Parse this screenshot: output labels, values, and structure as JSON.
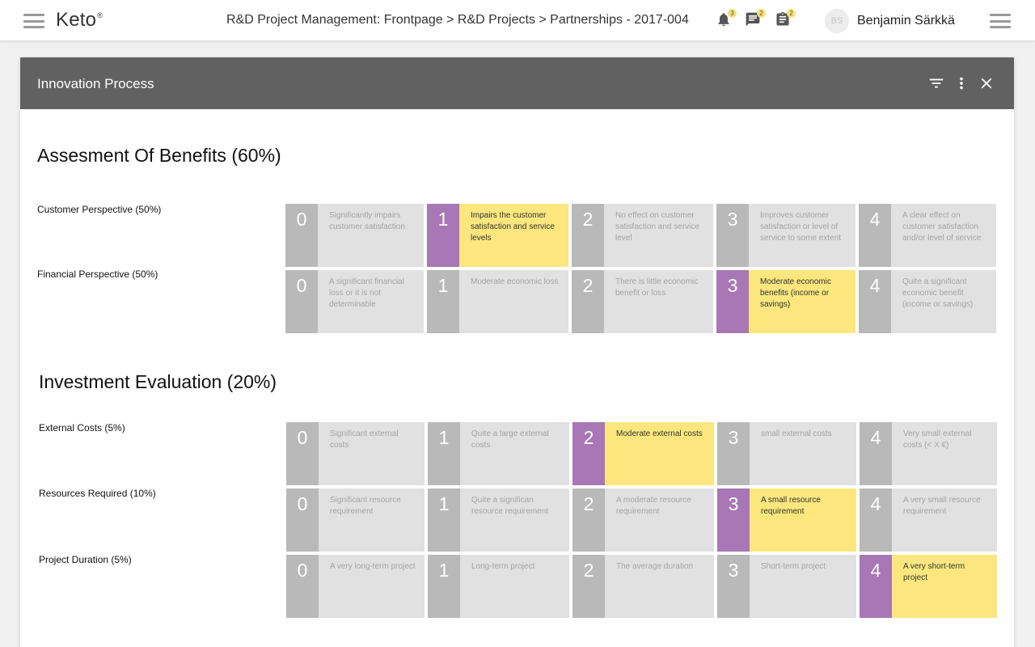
{
  "app": {
    "logo": "Keto",
    "logo_mark": "®"
  },
  "header": {
    "breadcrumb": "R&D Project Management: Frontpage > R&D Projects > Partnerships - 2017-004",
    "notifications": [
      {
        "icon": "bell-icon",
        "count": "3"
      },
      {
        "icon": "chat-icon",
        "count": "2"
      },
      {
        "icon": "clipboard-icon",
        "count": "2"
      }
    ],
    "user": {
      "initials": "BS",
      "name": "Benjamin Särkkä"
    }
  },
  "card": {
    "title": "Innovation Process"
  },
  "sections": [
    {
      "title": "Assesment Of Benefits (60%)",
      "rows": [
        {
          "label": "Customer Perspective (50%)",
          "selected": 1,
          "cells": [
            {
              "score": "0",
              "text": "Significantly impairs customer satisfaction"
            },
            {
              "score": "1",
              "text": "Impairs the customer satisfaction and service levels"
            },
            {
              "score": "2",
              "text": "No effect on customer satisfaction and service level"
            },
            {
              "score": "3",
              "text": "Improves customer satisfaction or level of service to some extent"
            },
            {
              "score": "4",
              "text": "A clear effect on customer satisfaction and/or level of service"
            }
          ]
        },
        {
          "label": "Financial Perspective (50%)",
          "selected": 3,
          "cells": [
            {
              "score": "0",
              "text": "A significant financial loss or it is not determinable"
            },
            {
              "score": "1",
              "text": "Moderate economic loss"
            },
            {
              "score": "2",
              "text": "There is little economic benefit or loss"
            },
            {
              "score": "3",
              "text": "Moderate economic benefits (income or savings)"
            },
            {
              "score": "4",
              "text": "Quite a significant economic benefit (income or savings)"
            }
          ]
        }
      ]
    },
    {
      "title": "Investment Evaluation (20%)",
      "rows": [
        {
          "label": "External Costs (5%)",
          "selected": 2,
          "cells": [
            {
              "score": "0",
              "text": "Significant external costs"
            },
            {
              "score": "1",
              "text": "Quite a large external costs"
            },
            {
              "score": "2",
              "text": "Moderate external costs"
            },
            {
              "score": "3",
              "text": "small external costs"
            },
            {
              "score": "4",
              "text": "Very small external costs (< X €)"
            }
          ]
        },
        {
          "label": "Resources Required (10%)",
          "selected": 3,
          "cells": [
            {
              "score": "0",
              "text": "Significant resource requirement"
            },
            {
              "score": "1",
              "text": "Quite a significan resource requirement"
            },
            {
              "score": "2",
              "text": "A moderate resource requirement"
            },
            {
              "score": "3",
              "text": "A small resource requirement"
            },
            {
              "score": "4",
              "text": "A very small resource requirement"
            }
          ]
        },
        {
          "label": "Project Duration (5%)",
          "selected": 4,
          "cells": [
            {
              "score": "0",
              "text": "A very long-term project"
            },
            {
              "score": "1",
              "text": "Long-term project"
            },
            {
              "score": "2",
              "text": "The average duration"
            },
            {
              "score": "3",
              "text": "Short-term project"
            },
            {
              "score": "4",
              "text": "A very short-term project"
            }
          ]
        }
      ]
    }
  ],
  "colors": {
    "selected_number": "#a877b5",
    "selected_cell": "#fbe77d",
    "cell": "#e1e1e1",
    "number": "#b9b9b9",
    "header": "#616161"
  }
}
